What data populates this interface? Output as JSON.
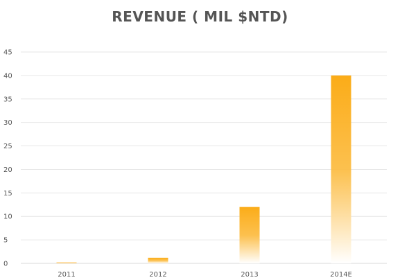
{
  "chart_data": {
    "type": "bar",
    "title": "REVENUE ( MIL $NTD)",
    "xlabel": "",
    "ylabel": "",
    "categories": [
      "2011",
      "2012",
      "2013",
      "2014E"
    ],
    "values": [
      0.2,
      1.2,
      12,
      40
    ],
    "ylim": [
      0,
      45
    ],
    "yticks": [
      "0",
      "5",
      "10",
      "15",
      "20",
      "25",
      "30",
      "35",
      "40",
      "45"
    ],
    "grid": true,
    "legend": "none",
    "colors": {
      "bar": "#fbac18",
      "grid": "#e6e6e6",
      "text": "#555555"
    }
  }
}
